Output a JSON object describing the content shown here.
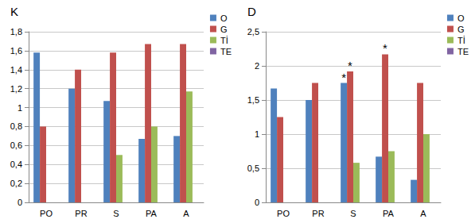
{
  "chart_data": [
    {
      "type": "bar",
      "title": "K",
      "categories": [
        "PO",
        "PR",
        "S",
        "PA",
        "A"
      ],
      "series": [
        {
          "name": "O",
          "color": "#4f81bd",
          "values": [
            1.58,
            1.2,
            1.07,
            0.67,
            0.7
          ]
        },
        {
          "name": "G",
          "color": "#c0504d",
          "values": [
            0.8,
            1.4,
            1.58,
            1.67,
            1.67
          ]
        },
        {
          "name": "Tİ",
          "color": "#9bbb59",
          "values": [
            0,
            0,
            0.5,
            0.8,
            1.17
          ]
        },
        {
          "name": "TE",
          "color": "#8064a2",
          "values": [
            0,
            0,
            0,
            0,
            0
          ]
        }
      ],
      "ylim": [
        0,
        1.8
      ],
      "yticks": [
        0,
        {
          "value": 0.2,
          "label": "0,2"
        },
        {
          "value": 0.4,
          "label": "0,4"
        },
        {
          "value": 0.6,
          "label": "0,6"
        },
        {
          "value": 0.8,
          "label": "0,8"
        },
        1,
        {
          "value": 1.2,
          "label": "1,2"
        },
        {
          "value": 1.4,
          "label": "1,4"
        },
        {
          "value": 1.6,
          "label": "1,6"
        },
        {
          "value": 1.8,
          "label": "1,8"
        }
      ],
      "grid": true,
      "legend": "top-right"
    },
    {
      "type": "bar",
      "title": "D",
      "categories": [
        "PO",
        "PR",
        "S",
        "PA",
        "A"
      ],
      "series": [
        {
          "name": "O",
          "color": "#4f81bd",
          "values": [
            1.67,
            1.5,
            1.75,
            0.67,
            0.33
          ]
        },
        {
          "name": "G",
          "color": "#c0504d",
          "values": [
            1.25,
            1.75,
            1.92,
            2.17,
            1.75
          ]
        },
        {
          "name": "Tİ",
          "color": "#9bbb59",
          "values": [
            0,
            0,
            0.58,
            0.75,
            1.0
          ]
        },
        {
          "name": "TE",
          "color": "#8064a2",
          "values": [
            0,
            0,
            0,
            0,
            0
          ]
        }
      ],
      "ylim": [
        0,
        2.5
      ],
      "yticks": [
        0,
        {
          "value": 0.5,
          "label": "0,5"
        },
        1,
        {
          "value": 1.5,
          "label": "1,5"
        },
        2,
        {
          "value": 2.5,
          "label": "2,5"
        }
      ],
      "grid": true,
      "legend": "top-right",
      "annotations": [
        {
          "text": "*",
          "category": "S",
          "series": "O"
        },
        {
          "text": "*",
          "category": "S",
          "series": "G"
        },
        {
          "text": "*",
          "category": "PA",
          "series": "G"
        }
      ]
    }
  ]
}
